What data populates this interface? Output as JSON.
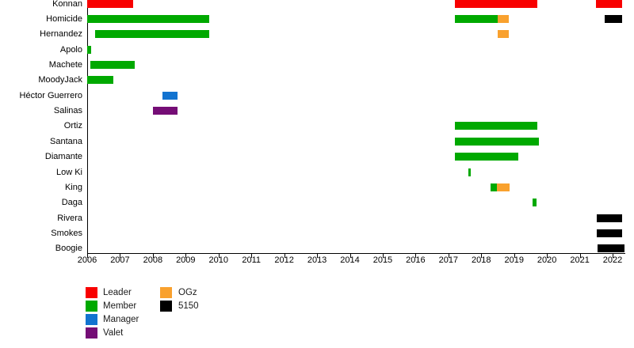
{
  "chart_data": {
    "type": "timeline",
    "title": "",
    "x_axis": {
      "min": 2006,
      "max": 2022.4,
      "ticks": [
        2006,
        2007,
        2008,
        2009,
        2010,
        2011,
        2012,
        2013,
        2014,
        2015,
        2016,
        2017,
        2018,
        2019,
        2020,
        2021,
        2022
      ]
    },
    "colors": {
      "Leader": "#f80000",
      "Member": "#00a900",
      "Manager": "#1273d0",
      "Valet": "#750d76",
      "OGz": "#f9a12e",
      "5150": "#000000"
    },
    "legend": [
      {
        "label": "Leader"
      },
      {
        "label": "Member"
      },
      {
        "label": "Manager"
      },
      {
        "label": "Valet"
      },
      {
        "label": "OGz"
      },
      {
        "label": "5150"
      }
    ],
    "legend_position": "bottom-left",
    "grid": false,
    "rows": [
      {
        "label": "Konnan",
        "bars": [
          {
            "start": 2006.0,
            "end": 2007.4,
            "role": "Leader"
          },
          {
            "start": 2017.2,
            "end": 2019.7,
            "role": "Leader"
          },
          {
            "start": 2021.5,
            "end": 2022.3,
            "role": "Leader"
          }
        ]
      },
      {
        "label": "Homicide",
        "bars": [
          {
            "start": 2006.0,
            "end": 2009.72,
            "role": "Member"
          },
          {
            "start": 2017.2,
            "end": 2018.5,
            "role": "Member"
          },
          {
            "start": 2018.5,
            "end": 2018.83,
            "role": "OGz"
          },
          {
            "start": 2021.75,
            "end": 2022.3,
            "role": "5150"
          }
        ]
      },
      {
        "label": "Hernandez",
        "bars": [
          {
            "start": 2006.25,
            "end": 2009.72,
            "role": "Member"
          },
          {
            "start": 2018.5,
            "end": 2018.83,
            "role": "OGz"
          }
        ]
      },
      {
        "label": "Apolo",
        "bars": [
          {
            "start": 2006.0,
            "end": 2006.12,
            "role": "Member"
          }
        ]
      },
      {
        "label": "Machete",
        "bars": [
          {
            "start": 2006.1,
            "end": 2007.45,
            "role": "Member"
          }
        ]
      },
      {
        "label": "MoodyJack",
        "bars": [
          {
            "start": 2006.0,
            "end": 2006.8,
            "role": "Member"
          }
        ]
      },
      {
        "label": "Héctor Guerrero",
        "bars": [
          {
            "start": 2008.3,
            "end": 2008.76,
            "role": "Manager"
          }
        ]
      },
      {
        "label": "Salinas",
        "bars": [
          {
            "start": 2008.0,
            "end": 2008.75,
            "role": "Valet"
          }
        ]
      },
      {
        "label": "Ortiz",
        "bars": [
          {
            "start": 2017.2,
            "end": 2019.7,
            "role": "Member"
          }
        ]
      },
      {
        "label": "Santana",
        "bars": [
          {
            "start": 2017.2,
            "end": 2019.76,
            "role": "Member"
          }
        ]
      },
      {
        "label": "Diamante",
        "bars": [
          {
            "start": 2017.2,
            "end": 2019.13,
            "role": "Member"
          }
        ]
      },
      {
        "label": "Low Ki",
        "bars": [
          {
            "start": 2017.6,
            "end": 2017.68,
            "role": "Member"
          }
        ]
      },
      {
        "label": "King",
        "bars": [
          {
            "start": 2018.29,
            "end": 2018.48,
            "role": "Member"
          },
          {
            "start": 2018.48,
            "end": 2018.86,
            "role": "OGz"
          }
        ]
      },
      {
        "label": "Daga",
        "bars": [
          {
            "start": 2019.55,
            "end": 2019.69,
            "role": "Member"
          }
        ]
      },
      {
        "label": "Rivera",
        "bars": [
          {
            "start": 2021.52,
            "end": 2022.3,
            "role": "5150"
          }
        ]
      },
      {
        "label": "Smokes",
        "bars": [
          {
            "start": 2021.52,
            "end": 2022.3,
            "role": "5150"
          }
        ]
      },
      {
        "label": "Boogie",
        "bars": [
          {
            "start": 2021.55,
            "end": 2022.37,
            "role": "5150"
          }
        ]
      }
    ]
  }
}
